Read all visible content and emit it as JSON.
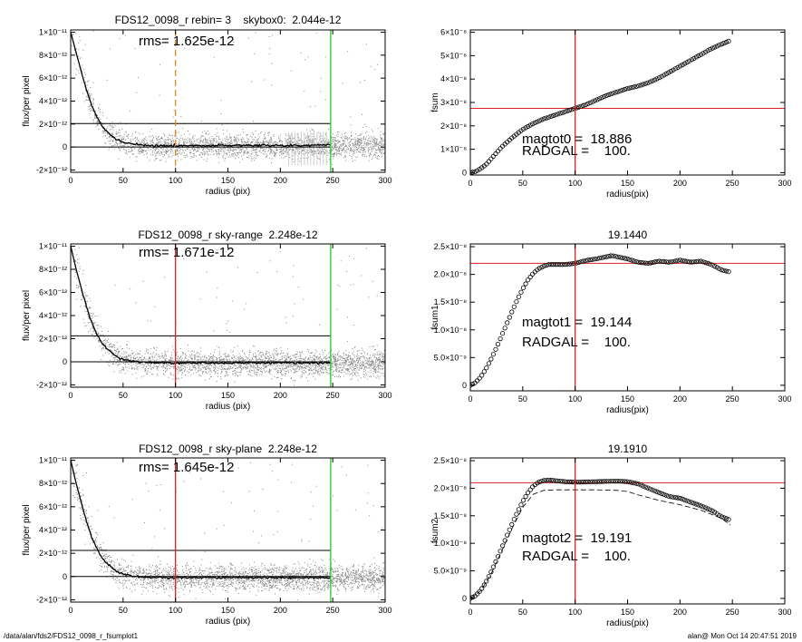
{
  "chart_data": [
    {
      "type": "scatter",
      "title": "FDS12_0098_r rebin= 3    skybox0:  2.044e-12",
      "annotations": [
        "rms= 1.625e-12"
      ],
      "xlabel": "radius (pix)",
      "ylabel": "flux/per pixel",
      "xlim": [
        0,
        300
      ],
      "ylim": [
        -2.2e-12,
        1.02e-11
      ],
      "x_ticks": [
        0,
        50,
        100,
        150,
        200,
        250,
        300
      ],
      "y_ticks": [
        {
          "value": -2e-12,
          "label": "-2×10⁻¹²"
        },
        {
          "value": 0,
          "label": "0"
        },
        {
          "value": 2e-12,
          "label": "2×10⁻¹²"
        },
        {
          "value": 4e-12,
          "label": "4×10⁻¹²"
        },
        {
          "value": 6e-12,
          "label": "6×10⁻¹²"
        },
        {
          "value": 8e-12,
          "label": "8×10⁻¹²"
        },
        {
          "value": 1e-11,
          "label": "1×10⁻¹¹"
        }
      ],
      "hlines": [
        {
          "y": 0,
          "color": "#000000"
        },
        {
          "y": 2.044e-12,
          "color": "#000000"
        }
      ],
      "vlines": [
        {
          "x": 100,
          "color": "#e88a1a",
          "style": "dashed"
        },
        {
          "x": 248,
          "color": "#22cc22",
          "style": "solid"
        }
      ],
      "series": [
        {
          "role": "profile",
          "x": [
            0,
            5,
            10,
            15,
            20,
            25,
            30,
            35,
            40,
            45,
            50,
            60,
            70,
            80,
            90,
            100,
            120,
            150,
            180,
            200,
            220,
            248
          ],
          "y": [
            1e-11,
            8.3e-12,
            6.6e-12,
            5e-12,
            3.6e-12,
            2.6e-12,
            1.8e-12,
            1.3e-12,
            9e-13,
            6e-13,
            4e-13,
            2.5e-13,
            1.5e-13,
            1e-13,
            1e-13,
            1e-13,
            1.2e-13,
            1.3e-13,
            1.5e-13,
            1.5e-13,
            1.5e-13,
            1.8e-13
          ]
        }
      ]
    },
    {
      "type": "scatter",
      "title": "FDS12_0098_r sky-range  2.248e-12",
      "annotations": [
        "rms= 1.671e-12"
      ],
      "xlabel": "radius (pix)",
      "ylabel": "flux/per pixel",
      "xlim": [
        0,
        300
      ],
      "ylim": [
        -2.2e-12,
        1.02e-11
      ],
      "x_ticks": [
        0,
        50,
        100,
        150,
        200,
        250,
        300
      ],
      "y_ticks": [
        {
          "value": -2e-12,
          "label": "-2×10⁻¹²"
        },
        {
          "value": 0,
          "label": "0"
        },
        {
          "value": 2e-12,
          "label": "2×10⁻¹²"
        },
        {
          "value": 4e-12,
          "label": "4×10⁻¹²"
        },
        {
          "value": 6e-12,
          "label": "6×10⁻¹²"
        },
        {
          "value": 8e-12,
          "label": "8×10⁻¹²"
        },
        {
          "value": 1e-11,
          "label": "1×10⁻¹¹"
        }
      ],
      "hlines": [
        {
          "y": 0,
          "color": "#000000"
        },
        {
          "y": 2.248e-12,
          "color": "#000000"
        }
      ],
      "vlines": [
        {
          "x": 100,
          "color": "#dd2222",
          "style": "solid"
        },
        {
          "x": 248,
          "color": "#22cc22",
          "style": "solid"
        }
      ],
      "series": [
        {
          "role": "profile",
          "x": [
            0,
            5,
            10,
            15,
            20,
            25,
            30,
            35,
            40,
            45,
            50,
            60,
            70,
            80,
            90,
            100,
            120,
            150,
            180,
            200,
            220,
            248
          ],
          "y": [
            1e-11,
            8.1e-12,
            6.4e-12,
            4.8e-12,
            3.4e-12,
            2.4e-12,
            1.6e-12,
            1.1e-12,
            7e-13,
            4e-13,
            2e-13,
            5e-14,
            -5e-14,
            -8e-14,
            -1e-13,
            -1e-13,
            -1e-13,
            -1e-13,
            -1e-13,
            -1e-13,
            -1e-13,
            -1e-13
          ]
        }
      ]
    },
    {
      "type": "scatter",
      "title": "FDS12_0098_r sky-plane  2.248e-12",
      "annotations": [
        "rms= 1.645e-12"
      ],
      "xlabel": "radius (pix)",
      "ylabel": "flux/per pixel",
      "xlim": [
        0,
        300
      ],
      "ylim": [
        -2.2e-12,
        1.02e-11
      ],
      "x_ticks": [
        0,
        50,
        100,
        150,
        200,
        250,
        300
      ],
      "y_ticks": [
        {
          "value": -2e-12,
          "label": "-2×10⁻¹²"
        },
        {
          "value": 0,
          "label": "0"
        },
        {
          "value": 2e-12,
          "label": "2×10⁻¹²"
        },
        {
          "value": 4e-12,
          "label": "4×10⁻¹²"
        },
        {
          "value": 6e-12,
          "label": "6×10⁻¹²"
        },
        {
          "value": 8e-12,
          "label": "8×10⁻¹²"
        },
        {
          "value": 1e-11,
          "label": "1×10⁻¹¹"
        }
      ],
      "hlines": [
        {
          "y": 0,
          "color": "#000000"
        },
        {
          "y": 2.248e-12,
          "color": "#000000"
        }
      ],
      "vlines": [
        {
          "x": 100,
          "color": "#dd2222",
          "style": "solid"
        },
        {
          "x": 248,
          "color": "#22cc22",
          "style": "solid"
        }
      ],
      "series": [
        {
          "role": "profile",
          "x": [
            0,
            5,
            10,
            15,
            20,
            25,
            30,
            35,
            40,
            45,
            50,
            60,
            70,
            80,
            90,
            100,
            120,
            150,
            180,
            200,
            220,
            248
          ],
          "y": [
            1e-11,
            8.1e-12,
            6.4e-12,
            4.8e-12,
            3.4e-12,
            2.4e-12,
            1.6e-12,
            1.1e-12,
            7e-13,
            4e-13,
            2e-13,
            5e-14,
            -5e-14,
            -8e-14,
            -1e-13,
            -1e-13,
            -1e-13,
            -1e-13,
            -1e-13,
            -1e-13,
            -1e-13,
            -1e-13
          ]
        }
      ]
    },
    {
      "type": "line",
      "title": "",
      "annotations": [
        "magtot0 =  18.886",
        "RADGAL =    100."
      ],
      "xlabel": "radius(pix)",
      "ylabel": "fsum",
      "xlim": [
        0,
        300
      ],
      "ylim": [
        -1e-09,
        6.1e-08
      ],
      "x_ticks": [
        0,
        50,
        100,
        150,
        200,
        250,
        300
      ],
      "y_ticks": [
        {
          "value": 0,
          "label": "0"
        },
        {
          "value": 1e-08,
          "label": "1×10⁻⁸"
        },
        {
          "value": 2e-08,
          "label": "2×10⁻⁸"
        },
        {
          "value": 3e-08,
          "label": "3×10⁻⁸"
        },
        {
          "value": 4e-08,
          "label": "4×10⁻⁸"
        },
        {
          "value": 5e-08,
          "label": "5×10⁻⁸"
        },
        {
          "value": 6e-08,
          "label": "6×10⁻⁸"
        }
      ],
      "hlines": [
        {
          "y": 2.75e-08,
          "color": "#dd2222"
        }
      ],
      "vlines": [
        {
          "x": 100,
          "color": "#dd2222",
          "style": "solid"
        }
      ],
      "series": [
        {
          "role": "fsum",
          "x": [
            0,
            5,
            10,
            15,
            20,
            25,
            30,
            40,
            50,
            60,
            70,
            80,
            90,
            100,
            110,
            120,
            130,
            140,
            150,
            160,
            170,
            180,
            190,
            200,
            210,
            220,
            230,
            240,
            248
          ],
          "y": [
            0,
            5e-10,
            1.8e-09,
            3.5e-09,
            6e-09,
            8.5e-09,
            1.1e-08,
            1.5e-08,
            1.85e-08,
            2.1e-08,
            2.3e-08,
            2.45e-08,
            2.6e-08,
            2.75e-08,
            2.9e-08,
            3.1e-08,
            3.3e-08,
            3.45e-08,
            3.6e-08,
            3.7e-08,
            3.85e-08,
            4.05e-08,
            4.3e-08,
            4.55e-08,
            4.8e-08,
            5.05e-08,
            5.3e-08,
            5.5e-08,
            5.65e-08
          ]
        }
      ]
    },
    {
      "type": "line",
      "title": "19.1440",
      "annotations": [
        "magtot1 =  19.144",
        "RADGAL =    100."
      ],
      "xlabel": "radius(pix)",
      "ylabel": "fsum1",
      "xlim": [
        0,
        300
      ],
      "ylim": [
        -1e-09,
        2.55e-08
      ],
      "x_ticks": [
        0,
        50,
        100,
        150,
        200,
        250,
        300
      ],
      "y_ticks": [
        {
          "value": 0,
          "label": "0"
        },
        {
          "value": 5e-09,
          "label": "5.0×10⁻⁹"
        },
        {
          "value": 1e-08,
          "label": "1.0×10⁻⁸"
        },
        {
          "value": 1.5e-08,
          "label": "1.5×10⁻⁸"
        },
        {
          "value": 2e-08,
          "label": "2.0×10⁻⁸"
        },
        {
          "value": 2.5e-08,
          "label": "2.5×10⁻⁸"
        }
      ],
      "hlines": [
        {
          "y": 2.2e-08,
          "color": "#dd2222"
        }
      ],
      "vlines": [
        {
          "x": 100,
          "color": "#dd2222",
          "style": "solid"
        }
      ],
      "series": [
        {
          "role": "fsum1",
          "x": [
            0,
            5,
            10,
            15,
            20,
            25,
            30,
            35,
            40,
            45,
            50,
            55,
            60,
            65,
            70,
            75,
            80,
            90,
            100,
            110,
            120,
            130,
            135,
            140,
            150,
            160,
            170,
            180,
            190,
            200,
            210,
            220,
            230,
            240,
            248
          ],
          "y": [
            0,
            5e-10,
            1.5e-09,
            3e-09,
            4.8e-09,
            6.8e-09,
            9e-09,
            1.12e-08,
            1.34e-08,
            1.55e-08,
            1.74e-08,
            1.9e-08,
            2.02e-08,
            2.1e-08,
            2.15e-08,
            2.18e-08,
            2.18e-08,
            2.18e-08,
            2.2e-08,
            2.25e-08,
            2.28e-08,
            2.32e-08,
            2.34e-08,
            2.32e-08,
            2.28e-08,
            2.22e-08,
            2.2e-08,
            2.24e-08,
            2.22e-08,
            2.26e-08,
            2.22e-08,
            2.24e-08,
            2.18e-08,
            2.08e-08,
            2.04e-08
          ]
        }
      ]
    },
    {
      "type": "line",
      "title": "19.1910",
      "annotations": [
        "magtot2 =  19.191",
        "RADGAL =    100."
      ],
      "xlabel": "radius(pix)",
      "ylabel": "fsum2",
      "xlim": [
        0,
        300
      ],
      "ylim": [
        -1e-09,
        2.55e-08
      ],
      "x_ticks": [
        0,
        50,
        100,
        150,
        200,
        250,
        300
      ],
      "y_ticks": [
        {
          "value": 0,
          "label": "0"
        },
        {
          "value": 5e-09,
          "label": "5.0×10⁻⁹"
        },
        {
          "value": 1e-08,
          "label": "1.0×10⁻⁸"
        },
        {
          "value": 1.5e-08,
          "label": "1.5×10⁻⁸"
        },
        {
          "value": 2e-08,
          "label": "2.0×10⁻⁸"
        },
        {
          "value": 2.5e-08,
          "label": "2.5×10⁻⁸"
        }
      ],
      "hlines": [
        {
          "y": 2.1e-08,
          "color": "#dd2222"
        }
      ],
      "vlines": [
        {
          "x": 100,
          "color": "#dd2222",
          "style": "solid"
        }
      ],
      "series": [
        {
          "role": "fsum2",
          "x": [
            0,
            5,
            10,
            15,
            20,
            25,
            30,
            35,
            40,
            45,
            50,
            55,
            60,
            65,
            70,
            75,
            80,
            90,
            100,
            120,
            140,
            150,
            160,
            170,
            180,
            190,
            200,
            210,
            220,
            230,
            240,
            248
          ],
          "y": [
            0,
            5e-10,
            1.5e-09,
            3e-09,
            4.9e-09,
            7e-09,
            9.2e-09,
            1.14e-08,
            1.36e-08,
            1.57e-08,
            1.76e-08,
            1.92e-08,
            2.04e-08,
            2.11e-08,
            2.14e-08,
            2.15e-08,
            2.14e-08,
            2.12e-08,
            2.11e-08,
            2.12e-08,
            2.13e-08,
            2.12e-08,
            2.08e-08,
            2e-08,
            1.92e-08,
            1.85e-08,
            1.82e-08,
            1.75e-08,
            1.68e-08,
            1.6e-08,
            1.48e-08,
            1.42e-08
          ]
        },
        {
          "role": "dashed",
          "x": [
            0,
            10,
            20,
            30,
            40,
            50,
            60,
            70,
            80,
            100,
            120,
            140,
            150,
            160,
            180,
            200,
            220,
            240,
            248
          ],
          "y": [
            0,
            1.4e-09,
            4.5e-09,
            8.6e-09,
            1.28e-08,
            1.65e-08,
            1.89e-08,
            1.96e-08,
            1.97e-08,
            1.97e-08,
            1.97e-08,
            1.96e-08,
            1.94e-08,
            1.88e-08,
            1.78e-08,
            1.7e-08,
            1.6e-08,
            1.45e-08,
            1.33e-08
          ]
        }
      ]
    }
  ],
  "footer": {
    "left": "/data/alan/fds2/FDS12_0098_r_fsumplot1",
    "right": "alan@  Mon Oct 14 20:47:51 2019"
  }
}
